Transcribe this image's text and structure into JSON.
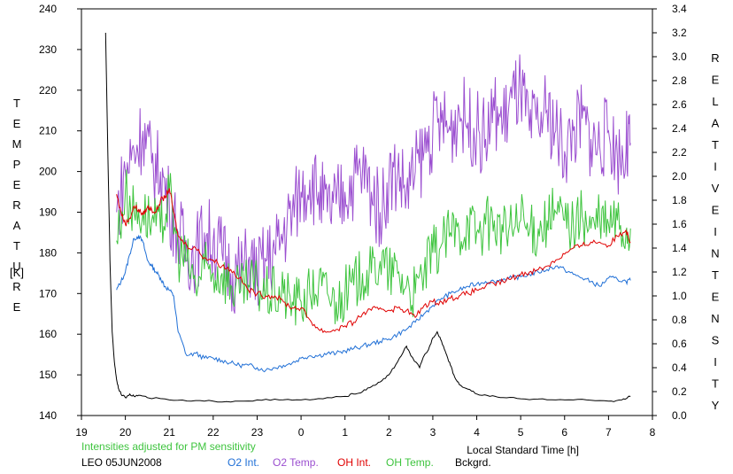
{
  "chart_data": {
    "type": "line",
    "title": "",
    "xlabel": "Local Standard Time [h]",
    "ylabel_left": "TEMPERATURE",
    "ylabel_left_unit": "[K]",
    "ylabel_right": "RELATIVE INTENSITY",
    "note": "Intensities adjusted for PM sensitivity",
    "station": "LEO 05JUN2008",
    "x_axis": {
      "range": [
        19,
        32
      ],
      "tick_labels": [
        "19",
        "20",
        "21",
        "22",
        "23",
        "0",
        "1",
        "2",
        "3",
        "4",
        "5",
        "6",
        "7",
        "8"
      ]
    },
    "y_left": {
      "range": [
        140,
        240
      ],
      "ticks": [
        140,
        150,
        160,
        170,
        180,
        190,
        200,
        210,
        220,
        230,
        240
      ]
    },
    "y_right": {
      "range": [
        0.0,
        3.4
      ],
      "ticks": [
        "0.0",
        "0.2",
        "0.4",
        "0.6",
        "0.8",
        "1.0",
        "1.2",
        "1.4",
        "1.6",
        "1.8",
        "2.0",
        "2.2",
        "2.4",
        "2.6",
        "2.8",
        "3.0",
        "3.2",
        "3.4"
      ]
    },
    "series": [
      {
        "name": "O2 Int.",
        "axis": "right",
        "color": "#1f6fd6",
        "x": [
          19.8,
          19.9,
          20.0,
          20.1,
          20.2,
          20.3,
          20.4,
          20.5,
          20.6,
          20.7,
          20.8,
          20.9,
          21.0,
          21.1,
          21.2,
          21.4,
          21.6,
          21.8,
          22.0,
          22.2,
          22.4,
          22.6,
          22.8,
          23.0,
          23.2,
          23.4,
          23.6,
          23.8,
          24.0,
          24.2,
          24.4,
          24.6,
          24.8,
          25.0,
          25.2,
          25.4,
          25.6,
          25.8,
          26.0,
          26.2,
          26.4,
          26.6,
          26.8,
          27.0,
          27.2,
          27.4,
          27.6,
          27.8,
          28.0,
          28.2,
          28.4,
          28.6,
          28.8,
          29.0,
          29.2,
          29.4,
          29.6,
          29.8,
          30.0,
          30.2,
          30.4,
          30.6,
          30.8,
          31.0,
          31.2,
          31.4,
          31.5
        ],
        "y": [
          1.05,
          1.12,
          1.2,
          1.35,
          1.48,
          1.5,
          1.45,
          1.3,
          1.25,
          1.2,
          1.15,
          1.08,
          1.05,
          1.0,
          0.7,
          0.5,
          0.52,
          0.48,
          0.48,
          0.46,
          0.44,
          0.42,
          0.42,
          0.4,
          0.38,
          0.4,
          0.42,
          0.44,
          0.48,
          0.5,
          0.5,
          0.52,
          0.52,
          0.54,
          0.56,
          0.58,
          0.6,
          0.62,
          0.64,
          0.68,
          0.72,
          0.78,
          0.85,
          0.92,
          0.98,
          1.02,
          1.05,
          1.08,
          1.1,
          1.12,
          1.12,
          1.14,
          1.15,
          1.16,
          1.18,
          1.2,
          1.22,
          1.25,
          1.22,
          1.18,
          1.15,
          1.12,
          1.08,
          1.15,
          1.14,
          1.12,
          1.13
        ]
      },
      {
        "name": "O2 Temp.",
        "axis": "left",
        "color": "#9b4fd0",
        "x": [
          19.8,
          20.0,
          20.2,
          20.4,
          20.6,
          20.8,
          21.0,
          21.2,
          21.4,
          21.6,
          21.8,
          22.0,
          22.2,
          22.4,
          22.6,
          22.8,
          23.0,
          23.2,
          23.4,
          23.6,
          23.8,
          24.0,
          24.2,
          24.4,
          24.6,
          24.8,
          25.0,
          25.2,
          25.4,
          25.6,
          25.8,
          26.0,
          26.2,
          26.4,
          26.6,
          26.8,
          27.0,
          27.2,
          27.4,
          27.6,
          27.8,
          28.0,
          28.2,
          28.4,
          28.6,
          28.8,
          29.0,
          29.2,
          29.4,
          29.6,
          29.8,
          30.0,
          30.2,
          30.4,
          30.6,
          30.8,
          31.0,
          31.2,
          31.4,
          31.5
        ],
        "y": [
          190,
          200,
          205,
          210,
          202,
          200,
          192,
          185,
          180,
          180,
          185,
          183,
          180,
          175,
          175,
          178,
          175,
          178,
          180,
          185,
          190,
          195,
          198,
          195,
          190,
          192,
          195,
          198,
          200,
          195,
          190,
          198,
          200,
          195,
          200,
          205,
          210,
          212,
          210,
          215,
          212,
          210,
          208,
          215,
          212,
          218,
          220,
          210,
          212,
          215,
          210,
          205,
          210,
          213,
          208,
          206,
          210,
          204,
          205,
          207
        ]
      },
      {
        "name": "OH Int.",
        "axis": "right",
        "color": "#e00000",
        "x": [
          19.8,
          19.9,
          20.0,
          20.1,
          20.2,
          20.3,
          20.4,
          20.5,
          20.6,
          20.7,
          20.8,
          20.9,
          21.0,
          21.1,
          21.2,
          21.4,
          21.6,
          21.8,
          22.0,
          22.2,
          22.4,
          22.6,
          22.8,
          23.0,
          23.2,
          23.4,
          23.6,
          23.8,
          24.0,
          24.2,
          24.4,
          24.6,
          24.8,
          25.0,
          25.2,
          25.4,
          25.6,
          25.8,
          26.0,
          26.2,
          26.4,
          26.6,
          26.8,
          27.0,
          27.2,
          27.4,
          27.6,
          27.8,
          28.0,
          28.2,
          28.4,
          28.6,
          28.8,
          29.0,
          29.2,
          29.4,
          29.6,
          29.8,
          30.0,
          30.2,
          30.4,
          30.6,
          30.8,
          31.0,
          31.2,
          31.4,
          31.5
        ],
        "y": [
          1.85,
          1.7,
          1.6,
          1.65,
          1.75,
          1.72,
          1.68,
          1.74,
          1.72,
          1.7,
          1.8,
          1.82,
          1.9,
          1.7,
          1.5,
          1.42,
          1.4,
          1.32,
          1.3,
          1.25,
          1.22,
          1.15,
          1.05,
          1.02,
          1.0,
          1.0,
          0.95,
          0.9,
          0.9,
          0.8,
          0.72,
          0.7,
          0.72,
          0.75,
          0.78,
          0.85,
          0.88,
          0.9,
          0.88,
          0.9,
          0.88,
          0.82,
          0.92,
          0.95,
          0.95,
          0.98,
          1.0,
          1.02,
          1.05,
          1.08,
          1.1,
          1.12,
          1.15,
          1.18,
          1.2,
          1.22,
          1.25,
          1.3,
          1.35,
          1.4,
          1.42,
          1.45,
          1.45,
          1.42,
          1.5,
          1.55,
          1.45
        ]
      },
      {
        "name": "OH Temp.",
        "axis": "left",
        "color": "#3ec43e",
        "x": [
          19.8,
          20.0,
          20.2,
          20.4,
          20.6,
          20.8,
          21.0,
          21.2,
          21.4,
          21.6,
          21.8,
          22.0,
          22.2,
          22.4,
          22.6,
          22.8,
          23.0,
          23.2,
          23.4,
          23.6,
          23.8,
          24.0,
          24.2,
          24.4,
          24.6,
          24.8,
          25.0,
          25.2,
          25.4,
          25.6,
          25.8,
          26.0,
          26.2,
          26.4,
          26.6,
          26.8,
          27.0,
          27.2,
          27.4,
          27.6,
          27.8,
          28.0,
          28.2,
          28.4,
          28.6,
          28.8,
          29.0,
          29.2,
          29.4,
          29.6,
          29.8,
          30.0,
          30.2,
          30.4,
          30.6,
          30.8,
          31.0,
          31.2,
          31.4,
          31.5
        ],
        "y": [
          183,
          195,
          190,
          190,
          188,
          185,
          195,
          180,
          178,
          172,
          176,
          175,
          175,
          172,
          170,
          172,
          172,
          170,
          170,
          170,
          168,
          168,
          170,
          172,
          170,
          168,
          170,
          172,
          175,
          175,
          178,
          175,
          175,
          172,
          170,
          175,
          180,
          182,
          185,
          185,
          188,
          185,
          187,
          188,
          185,
          186,
          188,
          185,
          186,
          188,
          190,
          188,
          187,
          189,
          186,
          188,
          187,
          188,
          185,
          186
        ]
      },
      {
        "name": "Bckgrd.",
        "axis": "right",
        "color": "#000000",
        "x": [
          19.55,
          19.6,
          19.65,
          19.7,
          19.75,
          19.8,
          19.85,
          19.9,
          20.0,
          20.1,
          20.2,
          20.3,
          20.5,
          21.0,
          21.5,
          22.0,
          22.5,
          23.0,
          23.5,
          24.0,
          24.5,
          25.0,
          25.2,
          25.4,
          25.6,
          25.8,
          26.0,
          26.2,
          26.4,
          26.5,
          26.7,
          26.8,
          26.9,
          27.0,
          27.1,
          27.2,
          27.3,
          27.4,
          27.5,
          27.6,
          27.8,
          28.0,
          28.3,
          28.6,
          29.0,
          29.5,
          30.0,
          30.5,
          31.0,
          31.3,
          31.5
        ],
        "y": [
          3.2,
          2.2,
          1.3,
          0.7,
          0.45,
          0.3,
          0.22,
          0.18,
          0.15,
          0.18,
          0.16,
          0.17,
          0.15,
          0.13,
          0.12,
          0.12,
          0.12,
          0.13,
          0.13,
          0.13,
          0.14,
          0.16,
          0.18,
          0.2,
          0.24,
          0.28,
          0.34,
          0.45,
          0.58,
          0.5,
          0.4,
          0.5,
          0.55,
          0.65,
          0.7,
          0.62,
          0.52,
          0.42,
          0.32,
          0.26,
          0.22,
          0.18,
          0.16,
          0.15,
          0.14,
          0.14,
          0.13,
          0.13,
          0.12,
          0.13,
          0.16
        ]
      }
    ]
  }
}
